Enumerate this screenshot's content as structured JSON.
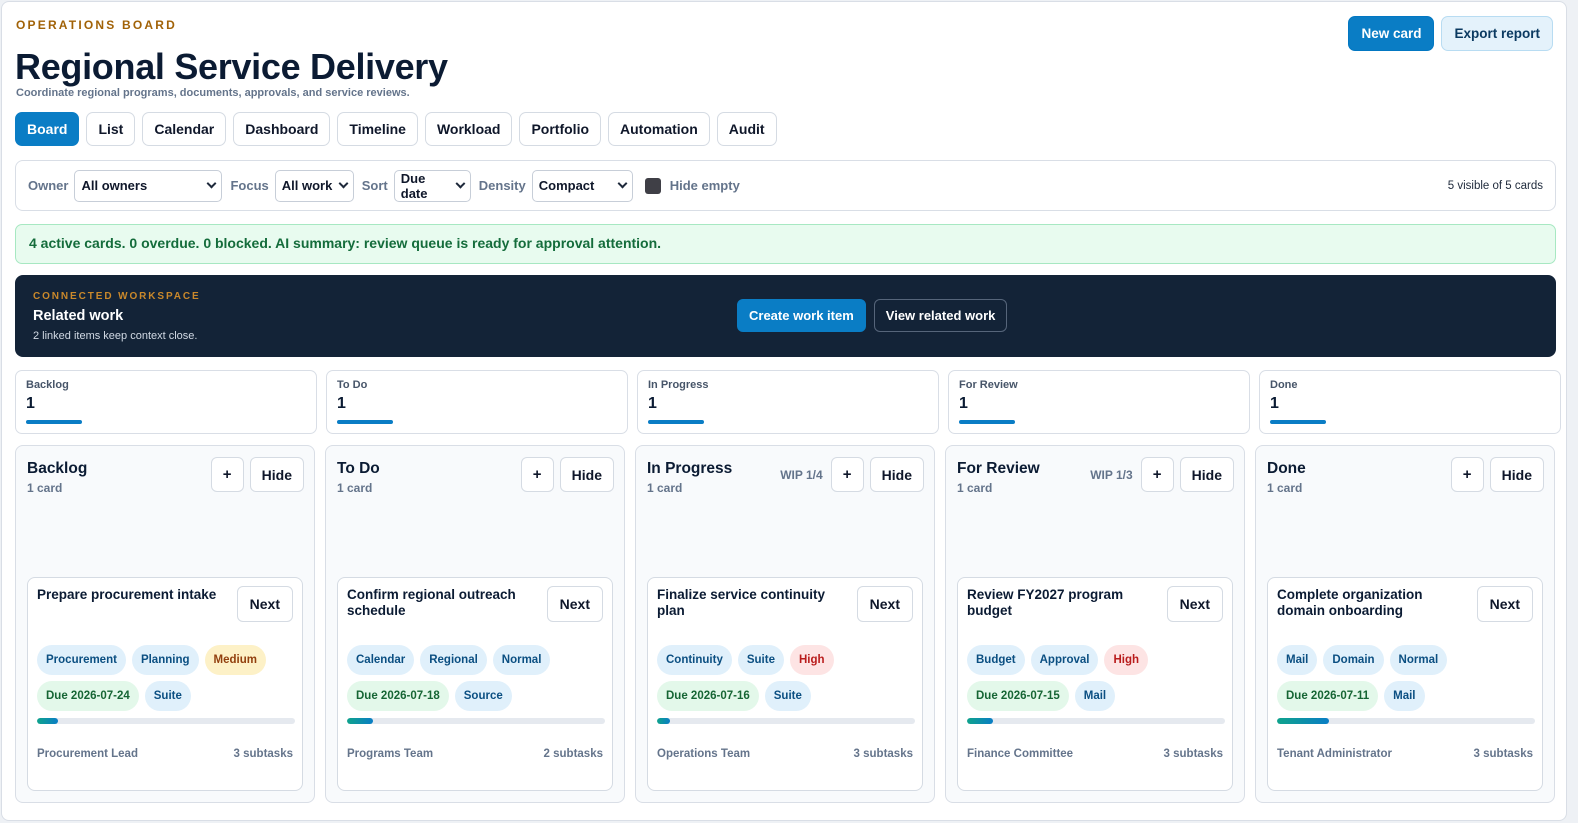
{
  "header": {
    "eyebrow": "OPERATIONS BOARD",
    "title": "Regional Service Delivery",
    "subtitle": "Coordinate regional programs, documents, approvals, and service reviews.",
    "new_card_label": "New card",
    "export_label": "Export report"
  },
  "tabs": [
    {
      "label": "Board",
      "active": true
    },
    {
      "label": "List"
    },
    {
      "label": "Calendar"
    },
    {
      "label": "Dashboard"
    },
    {
      "label": "Timeline"
    },
    {
      "label": "Workload"
    },
    {
      "label": "Portfolio"
    },
    {
      "label": "Automation"
    },
    {
      "label": "Audit"
    }
  ],
  "filters": {
    "owner_label": "Owner",
    "owner_value": "All owners",
    "focus_label": "Focus",
    "focus_value": "All work",
    "sort_label": "Sort",
    "sort_value": "Due date",
    "density_label": "Density",
    "density_value": "Compact",
    "hide_empty_label": "Hide empty",
    "visible_count": "5 visible of 5 cards"
  },
  "summary": "4 active cards. 0 overdue. 0 blocked. AI summary: review queue is ready for approval attention.",
  "workspace": {
    "eyebrow": "CONNECTED WORKSPACE",
    "title": "Related work",
    "description": "2 linked items keep context close.",
    "create_label": "Create work item",
    "view_label": "View related work"
  },
  "stats": [
    {
      "label": "Backlog",
      "value": "1"
    },
    {
      "label": "To Do",
      "value": "1"
    },
    {
      "label": "In Progress",
      "value": "1"
    },
    {
      "label": "For Review",
      "value": "1"
    },
    {
      "label": "Done",
      "value": "1"
    }
  ],
  "columns": [
    {
      "title": "Backlog",
      "count": "1 card",
      "wip": "",
      "add": "+",
      "hide": "Hide",
      "card": {
        "title": "Prepare procurement intake",
        "next": "Next",
        "tags": [
          {
            "text": "Procurement",
            "color": "blue"
          },
          {
            "text": "Planning",
            "color": "blue"
          },
          {
            "text": "Medium",
            "color": "amber"
          },
          {
            "text": "Due 2026-07-24",
            "color": "green"
          },
          {
            "text": "Suite",
            "color": "blue"
          }
        ],
        "progress": 0.08,
        "owner": "Procurement Lead",
        "subtasks": "3 subtasks"
      }
    },
    {
      "title": "To Do",
      "count": "1 card",
      "wip": "",
      "add": "+",
      "hide": "Hide",
      "card": {
        "title": "Confirm regional outreach schedule",
        "next": "Next",
        "tags": [
          {
            "text": "Calendar",
            "color": "blue"
          },
          {
            "text": "Regional",
            "color": "blue"
          },
          {
            "text": "Normal",
            "color": "blue"
          },
          {
            "text": "Due 2026-07-18",
            "color": "green"
          },
          {
            "text": "Source",
            "color": "blue"
          }
        ],
        "progress": 0.1,
        "owner": "Programs Team",
        "subtasks": "2 subtasks"
      }
    },
    {
      "title": "In Progress",
      "count": "1 card",
      "wip": "WIP 1/4",
      "add": "+",
      "hide": "Hide",
      "card": {
        "title": "Finalize service continuity plan",
        "next": "Next",
        "tags": [
          {
            "text": "Continuity",
            "color": "blue"
          },
          {
            "text": "Suite",
            "color": "blue"
          },
          {
            "text": "High",
            "color": "red"
          },
          {
            "text": "Due 2026-07-16",
            "color": "green"
          },
          {
            "text": "Suite",
            "color": "blue"
          }
        ],
        "progress": 0.05,
        "owner": "Operations Team",
        "subtasks": "3 subtasks"
      }
    },
    {
      "title": "For Review",
      "count": "1 card",
      "wip": "WIP 1/3",
      "add": "+",
      "hide": "Hide",
      "card": {
        "title": "Review FY2027 program budget",
        "next": "Next",
        "tags": [
          {
            "text": "Budget",
            "color": "blue"
          },
          {
            "text": "Approval",
            "color": "blue"
          },
          {
            "text": "High",
            "color": "red"
          },
          {
            "text": "Due 2026-07-15",
            "color": "green"
          },
          {
            "text": "Mail",
            "color": "blue"
          }
        ],
        "progress": 0.1,
        "owner": "Finance Committee",
        "subtasks": "3 subtasks"
      }
    },
    {
      "title": "Done",
      "count": "1 card",
      "wip": "",
      "add": "+",
      "hide": "Hide",
      "card": {
        "title": "Complete organization domain onboarding",
        "next": "Next",
        "tags": [
          {
            "text": "Mail",
            "color": "blue"
          },
          {
            "text": "Domain",
            "color": "blue"
          },
          {
            "text": "Normal",
            "color": "blue"
          },
          {
            "text": "Due 2026-07-11",
            "color": "green"
          },
          {
            "text": "Mail",
            "color": "blue"
          }
        ],
        "progress": 0.2,
        "owner": "Tenant Administrator",
        "subtasks": "3 subtasks"
      }
    }
  ],
  "colors": {
    "accent": "#0a7dc5",
    "eyebrow": "#a16207",
    "workspace_bg": "#132337",
    "summary_bg": "#e8fbef"
  }
}
